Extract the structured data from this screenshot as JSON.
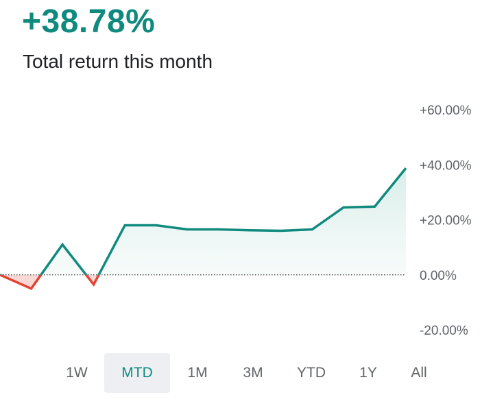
{
  "header": {
    "value": "+38.78%",
    "subtitle": "Total return this month"
  },
  "colors": {
    "positive": "#108a7e",
    "negative": "#e34234",
    "positive_fill": "#e3f2ef",
    "negative_fill": "#fbe3e1",
    "zero_line": "#333333"
  },
  "range_tabs": {
    "items": [
      "1W",
      "MTD",
      "1M",
      "3M",
      "YTD",
      "1Y",
      "All"
    ],
    "active": "MTD"
  },
  "chart_data": {
    "type": "area",
    "title": "",
    "xlabel": "",
    "ylabel": "",
    "ylim": [
      -20,
      60
    ],
    "yticks": [
      60,
      40,
      20,
      0,
      -20
    ],
    "ytick_labels": [
      "+60.00%",
      "+40.00%",
      "+20.00%",
      "0.00%",
      "-20.00%"
    ],
    "y_axis_position": "right",
    "grid": false,
    "baseline": 0,
    "x": [
      1,
      2,
      3,
      4,
      5,
      6,
      7,
      8,
      9,
      10,
      11,
      12,
      13,
      14
    ],
    "values": [
      0.0,
      -5.0,
      11.0,
      -3.5,
      18.0,
      18.0,
      16.5,
      16.5,
      16.2,
      16.0,
      16.5,
      24.5,
      24.8,
      38.78
    ]
  }
}
